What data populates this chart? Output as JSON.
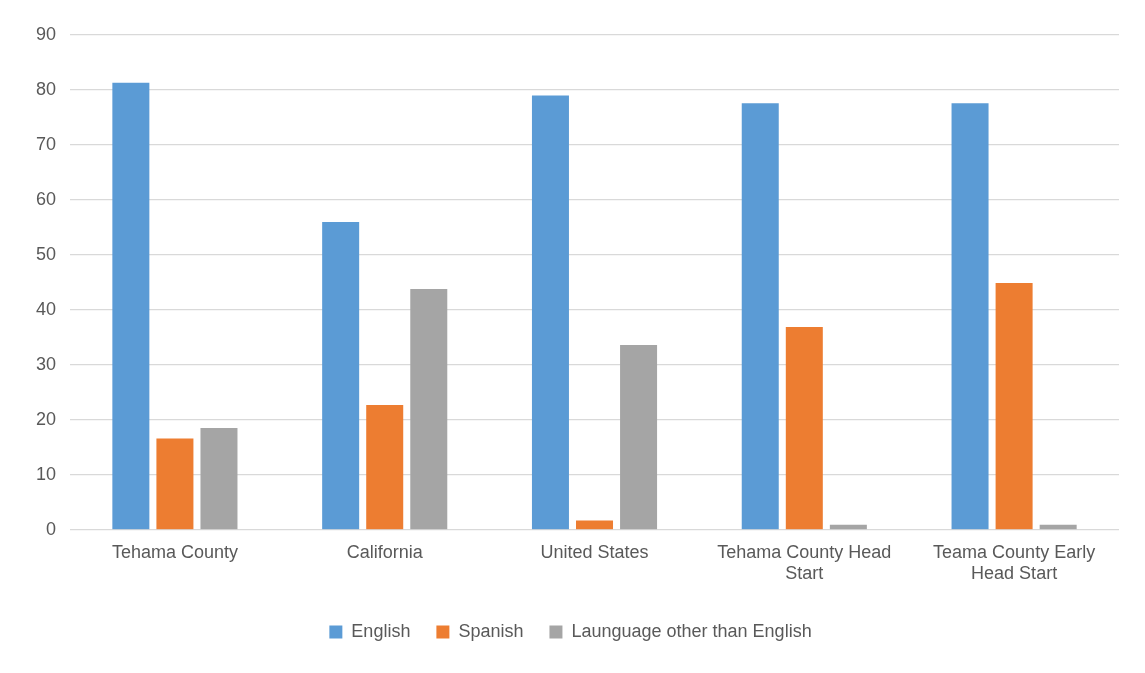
{
  "chart_data": {
    "type": "bar",
    "categories": [
      "Tehama County",
      "California",
      "United States",
      "Tehama County Head Start",
      "Teama County Early Head Start"
    ],
    "series": [
      {
        "name": "English",
        "color": "#5b9bd5",
        "values": [
          81.3,
          56.0,
          79.0,
          77.6,
          77.6
        ]
      },
      {
        "name": "Spanish",
        "color": "#ed7d31",
        "values": [
          16.6,
          22.7,
          1.7,
          36.9,
          44.9
        ]
      },
      {
        "name": "Launguage other than English",
        "color": "#a5a5a5",
        "values": [
          18.5,
          43.8,
          33.6,
          0.9,
          0.9
        ]
      }
    ],
    "ylim": [
      0,
      90
    ],
    "yticks": [
      0,
      10,
      20,
      30,
      40,
      50,
      60,
      70,
      80,
      90
    ],
    "grid": "y",
    "legend": "bottom"
  }
}
